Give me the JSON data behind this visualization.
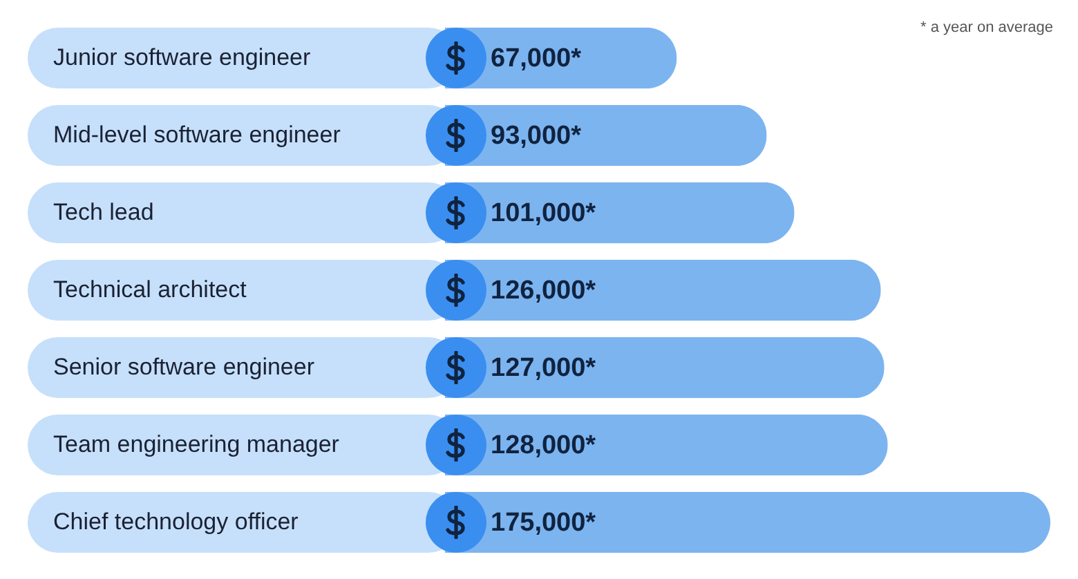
{
  "chart_data": {
    "type": "bar",
    "orientation": "horizontal",
    "categories": [
      "Junior software engineer",
      "Mid-level software engineer",
      "Tech lead",
      "Technical architect",
      "Senior software engineer",
      "Team engineering manager",
      "Chief technology officer"
    ],
    "values": [
      67000,
      93000,
      101000,
      126000,
      127000,
      128000,
      175000
    ],
    "value_labels": [
      "67,000*",
      "93,000*",
      "101,000*",
      "126,000*",
      "127,000*",
      "128,000*",
      "175,000*"
    ],
    "color": "#7cb4f0",
    "annotations": [
      "* a year on average"
    ]
  }
}
